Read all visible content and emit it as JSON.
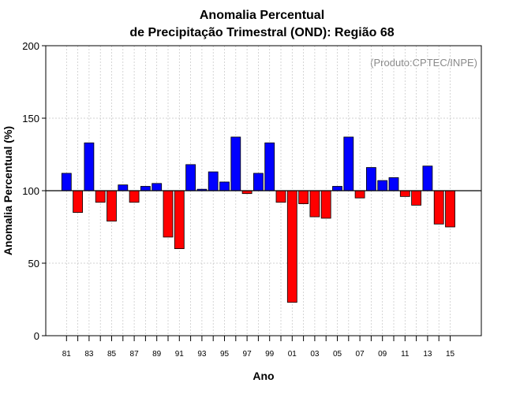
{
  "chart_data": {
    "type": "bar",
    "title_line1": "Anomalia Percentual",
    "title_line2": "de Precipitação Trimestral (OND): Região 68",
    "xlabel": "Ano",
    "ylabel": "Anomalia Percentual (%)",
    "credit": "(Produto:CPTEC/INPE)",
    "ylim": [
      0,
      200
    ],
    "yticks": [
      0,
      50,
      100,
      150,
      200
    ],
    "baseline": 100,
    "positive_color": "#0000ff",
    "negative_color": "#ff0000",
    "categories": [
      "81",
      "82",
      "83",
      "84",
      "85",
      "86",
      "87",
      "88",
      "89",
      "90",
      "91",
      "92",
      "93",
      "94",
      "95",
      "96",
      "97",
      "98",
      "99",
      "00",
      "01",
      "02",
      "03",
      "04",
      "05",
      "06",
      "07",
      "08",
      "09",
      "10",
      "11",
      "12",
      "13",
      "14",
      "15"
    ],
    "values": [
      112,
      85,
      133,
      92,
      79,
      104,
      92,
      103,
      105,
      68,
      60,
      118,
      101,
      113,
      106,
      137,
      98,
      112,
      133,
      92,
      23,
      91,
      82,
      81,
      103,
      137,
      95,
      116,
      107,
      109,
      96,
      90,
      117,
      77,
      75
    ],
    "tick_labels": [
      "81",
      "83",
      "85",
      "87",
      "89",
      "91",
      "93",
      "95",
      "97",
      "99",
      "01",
      "03",
      "05",
      "07",
      "09",
      "11",
      "13",
      "15"
    ]
  }
}
